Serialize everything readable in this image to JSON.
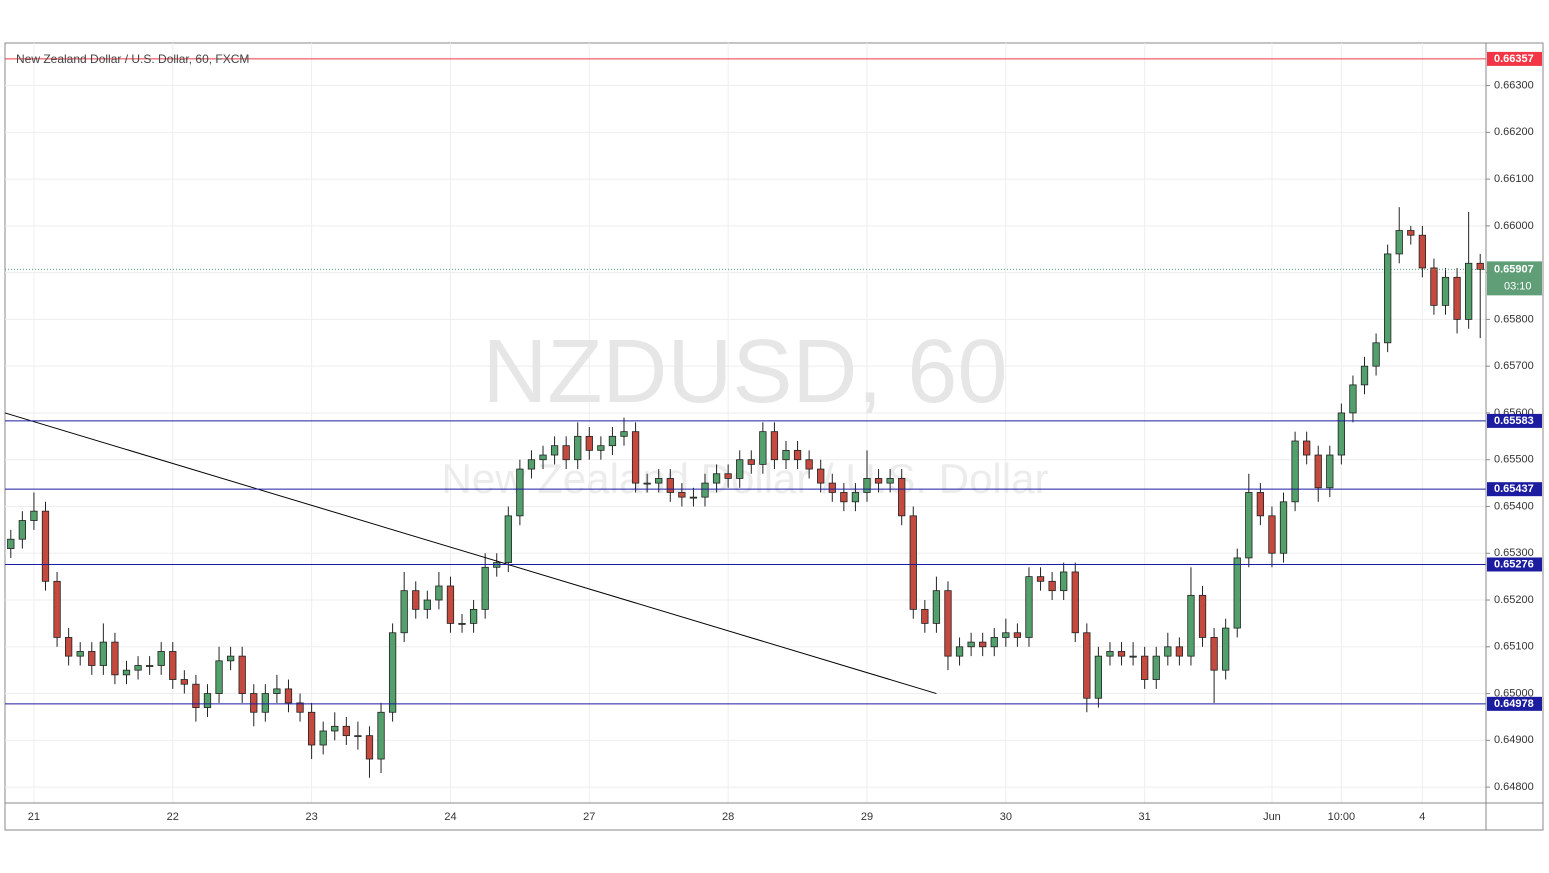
{
  "chart_data": {
    "type": "candlestick",
    "title": "New Zealand Dollar / U.S. Dollar, 60, FXCM",
    "watermark": "NZDUSD, 60",
    "watermark_subtitle": "New Zealand Dollar / U.S. Dollar",
    "categories": [
      null,
      null,
      "21",
      null,
      null,
      null,
      null,
      null,
      null,
      null,
      null,
      null,
      null,
      null,
      "22",
      null,
      null,
      null,
      null,
      null,
      null,
      null,
      null,
      null,
      null,
      null,
      "23",
      null,
      null,
      null,
      null,
      null,
      null,
      null,
      null,
      null,
      null,
      null,
      "24",
      null,
      null,
      null,
      null,
      null,
      null,
      null,
      null,
      null,
      null,
      null,
      "27",
      null,
      null,
      null,
      null,
      null,
      null,
      null,
      null,
      null,
      null,
      null,
      "28",
      null,
      null,
      null,
      null,
      null,
      null,
      null,
      null,
      null,
      null,
      null,
      "29",
      null,
      null,
      null,
      null,
      null,
      null,
      null,
      null,
      null,
      null,
      null,
      "30",
      null,
      null,
      null,
      null,
      null,
      null,
      null,
      null,
      null,
      null,
      null,
      "31",
      null,
      null,
      null,
      null,
      null,
      null,
      null,
      null,
      null,
      null,
      "Jun",
      null,
      null,
      null,
      null,
      null,
      "10:00",
      null,
      null,
      null,
      null,
      null,
      null,
      "4",
      null,
      null,
      null,
      null,
      null
    ],
    "ohlc": [
      [
        0.6531,
        0.6535,
        0.6529,
        0.6533
      ],
      [
        0.6533,
        0.6539,
        0.6531,
        0.6537
      ],
      [
        0.6537,
        0.6543,
        0.6535,
        0.6539
      ],
      [
        0.6539,
        0.6541,
        0.6522,
        0.6524
      ],
      [
        0.6524,
        0.6526,
        0.651,
        0.6512
      ],
      [
        0.6512,
        0.6514,
        0.6506,
        0.6508
      ],
      [
        0.6508,
        0.6511,
        0.6506,
        0.6509
      ],
      [
        0.6509,
        0.6511,
        0.6504,
        0.6506
      ],
      [
        0.6506,
        0.6515,
        0.6504,
        0.6511
      ],
      [
        0.6511,
        0.6513,
        0.6502,
        0.6504
      ],
      [
        0.6504,
        0.6507,
        0.6502,
        0.6505
      ],
      [
        0.6505,
        0.6508,
        0.6503,
        0.6506
      ],
      [
        0.6506,
        0.6508,
        0.6504,
        0.6506
      ],
      [
        0.6506,
        0.6511,
        0.6504,
        0.6509
      ],
      [
        0.6509,
        0.6511,
        0.6501,
        0.6503
      ],
      [
        0.6503,
        0.6505,
        0.65,
        0.6502
      ],
      [
        0.6502,
        0.6504,
        0.6494,
        0.6497
      ],
      [
        0.6497,
        0.6502,
        0.6495,
        0.65
      ],
      [
        0.65,
        0.651,
        0.6498,
        0.6507
      ],
      [
        0.6507,
        0.651,
        0.6505,
        0.6508
      ],
      [
        0.6508,
        0.651,
        0.6498,
        0.65
      ],
      [
        0.65,
        0.6502,
        0.6493,
        0.6496
      ],
      [
        0.6496,
        0.6502,
        0.6494,
        0.65
      ],
      [
        0.65,
        0.6504,
        0.6498,
        0.6501
      ],
      [
        0.6501,
        0.6503,
        0.6496,
        0.6498
      ],
      [
        0.6498,
        0.65,
        0.6494,
        0.6496
      ],
      [
        0.6496,
        0.6498,
        0.6486,
        0.6489
      ],
      [
        0.6489,
        0.6494,
        0.6487,
        0.6492
      ],
      [
        0.6492,
        0.6496,
        0.649,
        0.6493
      ],
      [
        0.6493,
        0.6495,
        0.6489,
        0.6491
      ],
      [
        0.6491,
        0.6494,
        0.6488,
        0.6491
      ],
      [
        0.6491,
        0.6493,
        0.6482,
        0.6486
      ],
      [
        0.6486,
        0.6498,
        0.6483,
        0.6496
      ],
      [
        0.6496,
        0.6515,
        0.6494,
        0.6513
      ],
      [
        0.6513,
        0.6526,
        0.6511,
        0.6522
      ],
      [
        0.6522,
        0.6524,
        0.6516,
        0.6518
      ],
      [
        0.6518,
        0.6522,
        0.6516,
        0.652
      ],
      [
        0.652,
        0.6526,
        0.6518,
        0.6523
      ],
      [
        0.6523,
        0.6525,
        0.6513,
        0.6515
      ],
      [
        0.6515,
        0.6517,
        0.6513,
        0.6515
      ],
      [
        0.6515,
        0.652,
        0.6513,
        0.6518
      ],
      [
        0.6518,
        0.653,
        0.6516,
        0.6527
      ],
      [
        0.6527,
        0.653,
        0.6525,
        0.6528
      ],
      [
        0.6528,
        0.654,
        0.6526,
        0.6538
      ],
      [
        0.6538,
        0.655,
        0.6536,
        0.6548
      ],
      [
        0.6548,
        0.6552,
        0.6546,
        0.655
      ],
      [
        0.655,
        0.6553,
        0.6548,
        0.6551
      ],
      [
        0.6551,
        0.6555,
        0.6549,
        0.6553
      ],
      [
        0.6553,
        0.6555,
        0.6548,
        0.655
      ],
      [
        0.655,
        0.6558,
        0.6548,
        0.6555
      ],
      [
        0.6555,
        0.6557,
        0.655,
        0.6552
      ],
      [
        0.6552,
        0.6555,
        0.655,
        0.6553
      ],
      [
        0.6553,
        0.6557,
        0.6551,
        0.6555
      ],
      [
        0.6555,
        0.6559,
        0.6553,
        0.6556
      ],
      [
        0.6556,
        0.6558,
        0.6543,
        0.6545
      ],
      [
        0.6545,
        0.6547,
        0.6543,
        0.6545
      ],
      [
        0.6545,
        0.6548,
        0.6543,
        0.6546
      ],
      [
        0.6546,
        0.6548,
        0.6541,
        0.6543
      ],
      [
        0.6543,
        0.6545,
        0.654,
        0.6542
      ],
      [
        0.6542,
        0.6544,
        0.654,
        0.6542
      ],
      [
        0.6542,
        0.6547,
        0.654,
        0.6545
      ],
      [
        0.6545,
        0.6549,
        0.6543,
        0.6547
      ],
      [
        0.6547,
        0.6549,
        0.6544,
        0.6546
      ],
      [
        0.6546,
        0.6552,
        0.6544,
        0.655
      ],
      [
        0.655,
        0.6552,
        0.6547,
        0.6549
      ],
      [
        0.6549,
        0.6558,
        0.6547,
        0.6556
      ],
      [
        0.6556,
        0.6558,
        0.6548,
        0.655
      ],
      [
        0.655,
        0.6554,
        0.6548,
        0.6552
      ],
      [
        0.6552,
        0.6554,
        0.6548,
        0.655
      ],
      [
        0.655,
        0.6552,
        0.6546,
        0.6548
      ],
      [
        0.6548,
        0.655,
        0.6543,
        0.6545
      ],
      [
        0.6545,
        0.6547,
        0.6541,
        0.6543
      ],
      [
        0.6543,
        0.6545,
        0.6539,
        0.6541
      ],
      [
        0.6541,
        0.6545,
        0.6539,
        0.6543
      ],
      [
        0.6543,
        0.6552,
        0.6541,
        0.6546
      ],
      [
        0.6546,
        0.6548,
        0.6543,
        0.6545
      ],
      [
        0.6545,
        0.6548,
        0.6543,
        0.6546
      ],
      [
        0.6546,
        0.6548,
        0.6536,
        0.6538
      ],
      [
        0.6538,
        0.654,
        0.6516,
        0.6518
      ],
      [
        0.6518,
        0.652,
        0.6513,
        0.6515
      ],
      [
        0.6515,
        0.6525,
        0.6513,
        0.6522
      ],
      [
        0.6522,
        0.6524,
        0.6505,
        0.6508
      ],
      [
        0.6508,
        0.6512,
        0.6506,
        0.651
      ],
      [
        0.651,
        0.6513,
        0.6508,
        0.6511
      ],
      [
        0.6511,
        0.6513,
        0.6508,
        0.651
      ],
      [
        0.651,
        0.6514,
        0.6508,
        0.6512
      ],
      [
        0.6512,
        0.6516,
        0.651,
        0.6513
      ],
      [
        0.6513,
        0.6515,
        0.651,
        0.6512
      ],
      [
        0.6512,
        0.6527,
        0.651,
        0.6525
      ],
      [
        0.6525,
        0.6527,
        0.6522,
        0.6524
      ],
      [
        0.6524,
        0.6526,
        0.652,
        0.6522
      ],
      [
        0.6522,
        0.6528,
        0.652,
        0.6526
      ],
      [
        0.6526,
        0.6528,
        0.6511,
        0.6513
      ],
      [
        0.6513,
        0.6515,
        0.6496,
        0.6499
      ],
      [
        0.6499,
        0.651,
        0.6497,
        0.6508
      ],
      [
        0.6508,
        0.6511,
        0.6506,
        0.6509
      ],
      [
        0.6509,
        0.6511,
        0.6506,
        0.6508
      ],
      [
        0.6508,
        0.6511,
        0.6506,
        0.6508
      ],
      [
        0.6508,
        0.651,
        0.6501,
        0.6503
      ],
      [
        0.6503,
        0.651,
        0.6501,
        0.6508
      ],
      [
        0.6508,
        0.6513,
        0.6506,
        0.651
      ],
      [
        0.651,
        0.6512,
        0.6506,
        0.6508
      ],
      [
        0.6508,
        0.6527,
        0.6506,
        0.6521
      ],
      [
        0.6521,
        0.6523,
        0.651,
        0.6512
      ],
      [
        0.6512,
        0.6514,
        0.6498,
        0.6505
      ],
      [
        0.6505,
        0.6516,
        0.6503,
        0.6514
      ],
      [
        0.6514,
        0.6531,
        0.6512,
        0.6529
      ],
      [
        0.6529,
        0.6547,
        0.6527,
        0.6543
      ],
      [
        0.6543,
        0.6545,
        0.6536,
        0.6538
      ],
      [
        0.6538,
        0.654,
        0.6527,
        0.653
      ],
      [
        0.653,
        0.6543,
        0.6528,
        0.6541
      ],
      [
        0.6541,
        0.6556,
        0.6539,
        0.6554
      ],
      [
        0.6554,
        0.6556,
        0.6549,
        0.6551
      ],
      [
        0.6551,
        0.6553,
        0.6541,
        0.6544
      ],
      [
        0.6544,
        0.6553,
        0.6542,
        0.6551
      ],
      [
        0.6551,
        0.6562,
        0.6549,
        0.656
      ],
      [
        0.656,
        0.6568,
        0.6558,
        0.6566
      ],
      [
        0.6566,
        0.6572,
        0.6564,
        0.657
      ],
      [
        0.657,
        0.6577,
        0.6568,
        0.6575
      ],
      [
        0.6575,
        0.6596,
        0.6573,
        0.6594
      ],
      [
        0.6594,
        0.6604,
        0.6592,
        0.6599
      ],
      [
        0.6599,
        0.66,
        0.6596,
        0.6598
      ],
      [
        0.6598,
        0.66,
        0.6589,
        0.6591
      ],
      [
        0.6591,
        0.6593,
        0.6581,
        0.6583
      ],
      [
        0.6583,
        0.6591,
        0.6581,
        0.6589
      ],
      [
        0.6589,
        0.6591,
        0.6577,
        0.658
      ],
      [
        0.658,
        0.6603,
        0.6578,
        0.6592
      ],
      [
        0.6592,
        0.6594,
        0.6576,
        0.65907
      ]
    ],
    "up_color": "#53a06c",
    "down_color": "#c4493e",
    "ylim": [
      0.64766,
      0.66391
    ],
    "yticks": [
      {
        "value": 0.648,
        "label": "0.64800"
      },
      {
        "value": 0.649,
        "label": "0.64900"
      },
      {
        "value": 0.65,
        "label": "0.65000"
      },
      {
        "value": 0.651,
        "label": "0.65100"
      },
      {
        "value": 0.652,
        "label": "0.65200"
      },
      {
        "value": 0.653,
        "label": "0.65300"
      },
      {
        "value": 0.654,
        "label": "0.65400"
      },
      {
        "value": 0.655,
        "label": "0.65500"
      },
      {
        "value": 0.656,
        "label": "0.65600"
      },
      {
        "value": 0.657,
        "label": "0.65700"
      },
      {
        "value": 0.658,
        "label": "0.65800"
      },
      {
        "value": 0.659,
        "label": "0.65900"
      },
      {
        "value": 0.66,
        "label": "0.66000"
      },
      {
        "value": 0.661,
        "label": "0.66100"
      },
      {
        "value": 0.662,
        "label": "0.66200"
      },
      {
        "value": 0.663,
        "label": "0.66300"
      }
    ],
    "levels": [
      {
        "value": 0.66357,
        "color": "#f23645"
      },
      {
        "value": 0.65583,
        "color": "#1c1ca0"
      },
      {
        "value": 0.65437,
        "color": "#1c1ca0"
      },
      {
        "value": 0.65276,
        "color": "#1c1ca0"
      },
      {
        "value": 0.64978,
        "color": "#1c1ca0"
      }
    ],
    "trendline": {
      "x": [
        0,
        80
      ],
      "y": [
        0.656,
        0.65
      ],
      "color": "#000000"
    },
    "last_price": 0.65907,
    "last_price_color": "#5f9e76",
    "countdown": "03:10",
    "grid": true
  }
}
